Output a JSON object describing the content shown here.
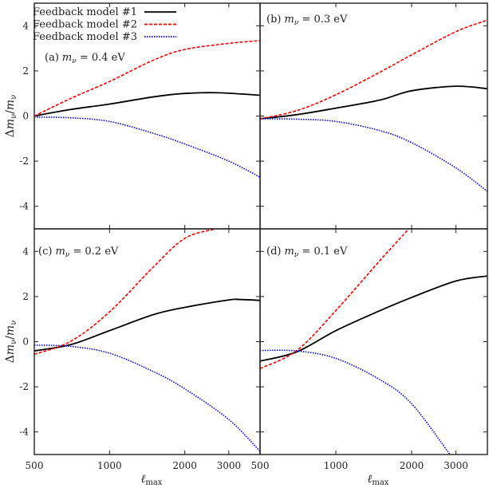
{
  "chart_data": {
    "type": "line",
    "layout": "2x2 panels, shared axes",
    "xlabel": {
      "symbol": "ℓ",
      "subscript": "max"
    },
    "ylabel": {
      "delta": "Δ",
      "symbol": "m",
      "subscript": "ν",
      "slash": "/"
    },
    "xscale": "log",
    "xlim": [
      500,
      4000
    ],
    "ylim": [
      -5,
      5
    ],
    "xticks": [
      500,
      1000,
      2000,
      3000
    ],
    "xtick_labels": [
      "500",
      "1000",
      "2000",
      "3000"
    ],
    "yticks": [
      -4,
      -2,
      0,
      2,
      4
    ],
    "ytick_labels": [
      "-4",
      "-2",
      "0",
      "2",
      "4"
    ],
    "grid": false,
    "legend": {
      "placement": "top-left of panel (a)",
      "entries": [
        {
          "name": "Feedback model #1",
          "color": "#000000",
          "style": "solid"
        },
        {
          "name": "Feedback model #2",
          "color": "#ff0000",
          "style": "dashed"
        },
        {
          "name": "Feedback model #3",
          "color": "#0000ff",
          "style": "dotted"
        }
      ]
    },
    "panels": [
      {
        "label": {
          "prefix": "(a)",
          "symbol": "m",
          "subscript": "ν",
          "rest": " = 0.4 eV"
        },
        "series": [
          {
            "name": "Feedback model #1",
            "x": [
              500,
              700,
              1000,
              1500,
              2000,
              2750,
              4000
            ],
            "y": [
              0.0,
              0.29,
              0.53,
              0.85,
              1.0,
              1.03,
              0.92
            ]
          },
          {
            "name": "Feedback model #2",
            "x": [
              500,
              700,
              1000,
              1500,
              2000,
              3000,
              4000
            ],
            "y": [
              0.0,
              0.78,
              1.53,
              2.48,
              2.95,
              3.22,
              3.34
            ]
          },
          {
            "name": "Feedback model #3",
            "x": [
              500,
              700,
              1000,
              1500,
              2000,
              3000,
              4000
            ],
            "y": [
              -0.05,
              -0.08,
              -0.24,
              -0.77,
              -1.24,
              -2.0,
              -2.71
            ]
          }
        ]
      },
      {
        "label": {
          "prefix": "(b)",
          "symbol": "m",
          "subscript": "ν",
          "rest": " = 0.3 eV"
        },
        "series": [
          {
            "name": "Feedback model #1",
            "x": [
              500,
              700,
              1000,
              1500,
              2000,
              3000,
              4000
            ],
            "y": [
              -0.12,
              0.06,
              0.35,
              0.71,
              1.12,
              1.32,
              1.21
            ]
          },
          {
            "name": "Feedback model #2",
            "x": [
              500,
              700,
              1000,
              1500,
              2000,
              3000,
              4000
            ],
            "y": [
              -0.12,
              0.24,
              0.94,
              1.95,
              2.71,
              3.74,
              4.25
            ]
          },
          {
            "name": "Feedback model #3",
            "x": [
              500,
              700,
              1000,
              1500,
              2000,
              3000,
              4000
            ],
            "y": [
              -0.12,
              -0.14,
              -0.24,
              -0.65,
              -1.18,
              -2.3,
              -3.34
            ]
          }
        ]
      },
      {
        "label": {
          "prefix": "(c)",
          "symbol": "m",
          "subscript": "ν",
          "rest": " = 0.2 eV"
        },
        "series": [
          {
            "name": "Feedback model #1",
            "x": [
              500,
              700,
              1000,
              1500,
              2000,
              3000,
              3300,
              4000
            ],
            "y": [
              -0.41,
              -0.13,
              0.49,
              1.2,
              1.52,
              1.85,
              1.87,
              1.83
            ]
          },
          {
            "name": "Feedback model #2",
            "x": [
              500,
              700,
              1000,
              1500,
              2000,
              2660
            ],
            "y": [
              -0.56,
              0.02,
              1.32,
              3.32,
              4.58,
              5.0
            ]
          },
          {
            "name": "Feedback model #3",
            "x": [
              500,
              700,
              1000,
              1500,
              2000,
              3000,
              4000
            ],
            "y": [
              -0.15,
              -0.21,
              -0.51,
              -1.33,
              -2.09,
              -3.45,
              -4.86
            ]
          }
        ]
      },
      {
        "label": {
          "prefix": "(d)",
          "symbol": "m",
          "subscript": "ν",
          "rest": " = 0.1 eV"
        },
        "series": [
          {
            "name": "Feedback model #1",
            "x": [
              500,
              700,
              1000,
              1500,
              2000,
              3000,
              4000
            ],
            "y": [
              -0.86,
              -0.45,
              0.49,
              1.38,
              1.96,
              2.69,
              2.91
            ]
          },
          {
            "name": "Feedback model #2",
            "x": [
              500,
              700,
              1000,
              1500,
              1950
            ],
            "y": [
              -1.19,
              -0.39,
              1.38,
              3.61,
              5.0
            ]
          },
          {
            "name": "Feedback model #3",
            "x": [
              500,
              700,
              1000,
              1500,
              2000,
              2840
            ],
            "y": [
              -0.39,
              -0.41,
              -0.74,
              -1.69,
              -2.75,
              -5.0
            ]
          }
        ]
      }
    ]
  }
}
